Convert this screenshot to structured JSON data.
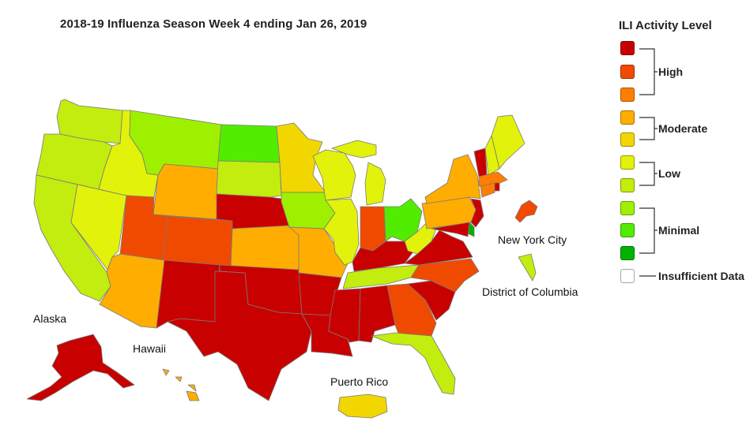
{
  "title": "2018-19 Influenza Season Week 4 ending Jan 26, 2019",
  "legend": {
    "title": "ILI Activity Level",
    "levels": [
      {
        "level": 10,
        "color": "#c90000"
      },
      {
        "level": 9,
        "color": "#f04a00"
      },
      {
        "level": 8,
        "color": "#ff7e00"
      },
      {
        "level": 7,
        "color": "#ffad00"
      },
      {
        "level": 6,
        "color": "#f2d600"
      },
      {
        "level": 5,
        "color": "#e2f20a"
      },
      {
        "level": 4,
        "color": "#c3ec0f"
      },
      {
        "level": 3,
        "color": "#9ef000"
      },
      {
        "level": 2,
        "color": "#52ec00"
      },
      {
        "level": 1,
        "color": "#00b200"
      }
    ],
    "groups": {
      "high": "High",
      "moderate": "Moderate",
      "low": "Low",
      "minimal": "Minimal",
      "insufficient": "Insufficient Data"
    },
    "insufficient_color": "#ffffff"
  },
  "labels": {
    "alaska": "Alaska",
    "hawaii": "Hawaii",
    "puerto_rico": "Puerto Rico",
    "new_york_city": "New York City",
    "district_of_columbia": "District of Columbia"
  },
  "states": {
    "WA": "Low",
    "OR": "Low",
    "CA": "Low",
    "NV": "Low",
    "ID": "Low",
    "MT": "Minimal",
    "WY": "Moderate",
    "UT": "High",
    "AZ": "Moderate",
    "CO": "High",
    "NM": "High",
    "ND": "Minimal",
    "SD": "Low",
    "NE": "High",
    "KS": "Moderate",
    "OK": "High",
    "TX": "High",
    "MN": "Moderate",
    "IA": "Minimal",
    "MO": "Moderate",
    "AR": "High",
    "LA": "High",
    "WI": "Low",
    "IL": "Low",
    "MI": "Low",
    "IN": "High",
    "OH": "Minimal",
    "KY": "High",
    "TN": "Low",
    "MS": "High",
    "AL": "High",
    "GA": "High",
    "FL": "Low",
    "SC": "High",
    "NC": "High",
    "VA": "High",
    "WV": "Low",
    "PA": "Moderate",
    "NY": "Moderate",
    "VT": "High",
    "NH": "Low",
    "ME": "Low",
    "MA": "Moderate",
    "CT": "Moderate",
    "RI": "High",
    "NJ": "High",
    "DE": "Minimal",
    "MD": "High",
    "AK": "High",
    "HI": "Moderate",
    "PR": "Moderate",
    "NYC": "High",
    "DC": "Low"
  }
}
